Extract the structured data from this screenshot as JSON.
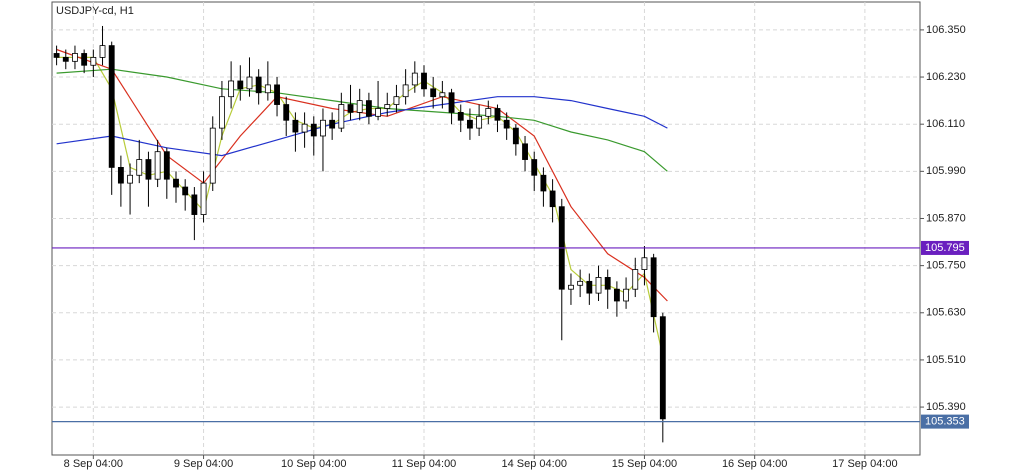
{
  "chart_data": {
    "type": "candlestick",
    "title": "USDJPY-cd, H1",
    "x": [
      0,
      2,
      4,
      6,
      8,
      10,
      12,
      14,
      16,
      18,
      20,
      22,
      24,
      26,
      28,
      30,
      32,
      34,
      36,
      38,
      40,
      42,
      44,
      46,
      48,
      50,
      52,
      54,
      56,
      58,
      60,
      62,
      64,
      66,
      68,
      70,
      72,
      74,
      76,
      78,
      80,
      82,
      84,
      86,
      88,
      90,
      92,
      94,
      96,
      98,
      100,
      102,
      104,
      106,
      108,
      110,
      112,
      114,
      116,
      118,
      120,
      122,
      124,
      126,
      128,
      130,
      132
    ],
    "open": [
      106.29,
      106.28,
      106.27,
      106.29,
      106.26,
      106.28,
      106.31,
      106.0,
      105.96,
      105.98,
      106.02,
      105.97,
      106.04,
      105.97,
      105.95,
      105.93,
      105.88,
      105.96,
      106.1,
      106.18,
      106.22,
      106.2,
      106.23,
      106.19,
      106.21,
      106.16,
      106.12,
      106.09,
      106.11,
      106.08,
      106.12,
      106.1,
      106.16,
      106.14,
      106.17,
      106.13,
      106.15,
      106.16,
      106.18,
      106.21,
      106.24,
      106.2,
      106.18,
      106.19,
      106.14,
      106.12,
      106.1,
      106.13,
      106.15,
      106.12,
      106.1,
      106.06,
      106.02,
      105.98,
      105.94,
      105.9,
      105.69,
      105.7,
      105.71,
      105.68,
      105.72,
      105.69,
      105.66,
      105.69,
      105.74,
      105.77,
      105.62
    ],
    "high": [
      106.31,
      106.3,
      106.31,
      106.3,
      106.3,
      106.36,
      106.32,
      106.03,
      106.01,
      106.07,
      106.04,
      106.07,
      106.05,
      105.99,
      105.97,
      105.95,
      105.99,
      106.13,
      106.22,
      106.27,
      106.26,
      106.28,
      106.25,
      106.27,
      106.23,
      106.18,
      106.14,
      106.14,
      106.13,
      106.15,
      106.14,
      106.19,
      106.21,
      106.2,
      106.19,
      106.22,
      106.19,
      106.21,
      106.25,
      106.27,
      106.26,
      106.23,
      106.22,
      106.2,
      106.16,
      106.15,
      106.16,
      106.17,
      106.16,
      106.14,
      106.11,
      106.08,
      106.04,
      106.0,
      105.97,
      105.92,
      105.73,
      105.74,
      105.73,
      105.75,
      105.74,
      105.71,
      105.72,
      105.77,
      105.8,
      105.78,
      105.63
    ],
    "low": [
      106.26,
      106.25,
      106.25,
      106.24,
      106.23,
      106.26,
      105.93,
      105.9,
      105.88,
      105.96,
      105.9,
      105.95,
      105.92,
      105.91,
      105.89,
      105.815,
      105.86,
      105.94,
      106.07,
      106.15,
      106.17,
      106.18,
      106.16,
      106.17,
      106.13,
      106.08,
      106.04,
      106.05,
      106.03,
      105.99,
      106.07,
      106.09,
      106.12,
      106.12,
      106.11,
      106.12,
      106.13,
      106.14,
      106.16,
      106.19,
      106.18,
      106.15,
      106.15,
      106.11,
      106.09,
      106.07,
      106.08,
      106.11,
      106.09,
      106.07,
      106.03,
      105.99,
      105.94,
      105.9,
      105.86,
      105.56,
      105.65,
      105.67,
      105.65,
      105.66,
      105.64,
      105.62,
      105.64,
      105.67,
      105.7,
      105.58,
      105.3
    ],
    "close": [
      106.28,
      106.27,
      106.29,
      106.26,
      106.28,
      106.31,
      106.0,
      105.96,
      105.98,
      106.02,
      105.97,
      106.04,
      105.97,
      105.95,
      105.93,
      105.88,
      105.96,
      106.1,
      106.18,
      106.22,
      106.2,
      106.23,
      106.19,
      106.21,
      106.16,
      106.12,
      106.09,
      106.11,
      106.08,
      106.12,
      106.1,
      106.16,
      106.14,
      106.17,
      106.13,
      106.15,
      106.16,
      106.18,
      106.21,
      106.24,
      106.2,
      106.18,
      106.19,
      106.14,
      106.12,
      106.1,
      106.13,
      106.15,
      106.12,
      106.1,
      106.06,
      106.02,
      105.98,
      105.94,
      105.9,
      105.69,
      105.7,
      105.71,
      105.68,
      105.72,
      105.69,
      105.66,
      105.69,
      105.74,
      105.77,
      105.62,
      105.36
    ],
    "up_color": "#ffffff",
    "down_color": "#000000",
    "lines": [
      {
        "color": "#b8cc3a",
        "x": [
          0,
          4,
          8,
          12,
          16,
          20,
          24,
          28,
          32,
          36,
          40,
          44,
          48,
          52,
          56,
          60,
          64,
          68,
          72,
          76,
          80,
          84,
          88,
          92,
          96,
          100,
          104,
          108,
          112,
          116,
          120,
          124,
          128,
          132
        ],
        "values": [
          106.28,
          106.28,
          106.28,
          106.2,
          106.0,
          105.98,
          105.99,
          105.94,
          105.89,
          106.08,
          106.2,
          106.21,
          106.19,
          106.12,
          106.1,
          106.11,
          106.14,
          106.15,
          106.15,
          106.19,
          106.22,
          106.19,
          106.14,
          106.12,
          106.13,
          106.09,
          106.01,
          105.93,
          105.74,
          105.7,
          105.7,
          105.68,
          105.73,
          105.52
        ]
      },
      {
        "color": "#d9301f",
        "x": [
          0,
          12,
          24,
          32,
          40,
          48,
          60,
          72,
          84,
          96,
          104,
          112,
          120,
          128,
          133
        ],
        "values": [
          106.3,
          106.25,
          106.03,
          105.96,
          106.08,
          106.18,
          106.15,
          106.13,
          106.18,
          106.15,
          106.08,
          105.9,
          105.78,
          105.72,
          105.66
        ]
      },
      {
        "color": "#3a9a2e",
        "x": [
          0,
          12,
          24,
          36,
          48,
          60,
          72,
          84,
          96,
          104,
          112,
          120,
          128,
          133
        ],
        "values": [
          106.24,
          106.25,
          106.23,
          106.2,
          106.19,
          106.17,
          106.15,
          106.14,
          106.13,
          106.12,
          106.09,
          106.07,
          106.04,
          105.99
        ]
      },
      {
        "color": "#2233cc",
        "x": [
          0,
          12,
          24,
          36,
          48,
          60,
          72,
          84,
          96,
          104,
          112,
          120,
          128,
          133
        ],
        "values": [
          106.06,
          106.08,
          106.05,
          106.03,
          106.07,
          106.11,
          106.14,
          106.16,
          106.18,
          106.18,
          106.17,
          106.15,
          106.13,
          106.1
        ]
      }
    ],
    "hlines": [
      {
        "value": 105.795,
        "color": "#6a1fbf"
      },
      {
        "value": 105.353,
        "color": "#4a6fa5"
      }
    ],
    "xlim": [
      -1,
      188
    ],
    "ylim": [
      105.268,
      106.421
    ],
    "xticks": [
      {
        "value": 8,
        "label": "8 Sep 04:00"
      },
      {
        "value": 32,
        "label": "9 Sep 04:00"
      },
      {
        "value": 56,
        "label": "10 Sep 04:00"
      },
      {
        "value": 80,
        "label": "11 Sep 04:00"
      },
      {
        "value": 104,
        "label": "14 Sep 04:00"
      },
      {
        "value": 128,
        "label": "15 Sep 04:00"
      },
      {
        "value": 152,
        "label": "16 Sep 04:00"
      },
      {
        "value": 176,
        "label": "17 Sep 04:00"
      }
    ],
    "yticks": [
      {
        "value": 106.35,
        "label": "106.350"
      },
      {
        "value": 106.23,
        "label": "106.230"
      },
      {
        "value": 106.11,
        "label": "106.110"
      },
      {
        "value": 105.99,
        "label": "105.990"
      },
      {
        "value": 105.87,
        "label": "105.870"
      },
      {
        "value": 105.75,
        "label": "105.750"
      },
      {
        "value": 105.63,
        "label": "105.630"
      },
      {
        "value": 105.51,
        "label": "105.510"
      },
      {
        "value": 105.39,
        "label": "105.390"
      }
    ],
    "grid": true
  }
}
